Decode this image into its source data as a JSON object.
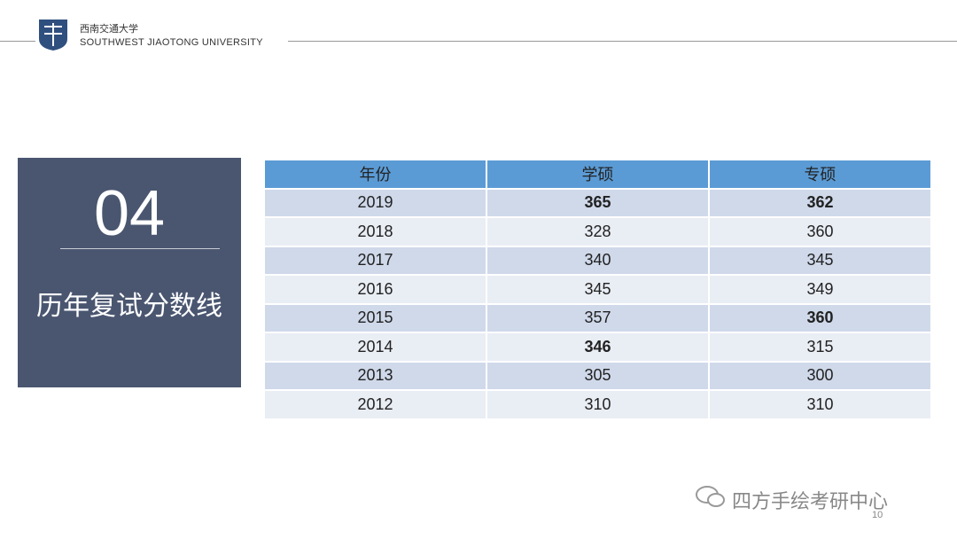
{
  "header": {
    "name_cn": "西南交通大学",
    "name_en": "SOUTHWEST JIAOTONG UNIVERSITY"
  },
  "section": {
    "number": "04",
    "title": "历年复试分数线"
  },
  "table": {
    "headers": [
      "年份",
      "学硕",
      "专硕"
    ],
    "rows": [
      [
        {
          "text": "2019",
          "bold": false
        },
        {
          "text": "365",
          "bold": true
        },
        {
          "text": "362",
          "bold": true
        }
      ],
      [
        {
          "text": "2018",
          "bold": false
        },
        {
          "text": "328",
          "bold": false
        },
        {
          "text": "360",
          "bold": false
        }
      ],
      [
        {
          "text": "2017",
          "bold": false
        },
        {
          "text": "340",
          "bold": false
        },
        {
          "text": "345",
          "bold": false
        }
      ],
      [
        {
          "text": "2016",
          "bold": false
        },
        {
          "text": "345",
          "bold": false
        },
        {
          "text": "349",
          "bold": false
        }
      ],
      [
        {
          "text": "2015",
          "bold": false
        },
        {
          "text": "357",
          "bold": false
        },
        {
          "text": "360",
          "bold": true
        }
      ],
      [
        {
          "text": "2014",
          "bold": false
        },
        {
          "text": "346",
          "bold": true
        },
        {
          "text": "315",
          "bold": false
        }
      ],
      [
        {
          "text": "2013",
          "bold": false
        },
        {
          "text": "305",
          "bold": false
        },
        {
          "text": "300",
          "bold": false
        }
      ],
      [
        {
          "text": "2012",
          "bold": false
        },
        {
          "text": "310",
          "bold": false
        },
        {
          "text": "310",
          "bold": false
        }
      ]
    ]
  },
  "footer": {
    "account": "四方手绘考研中心",
    "page": "10"
  }
}
